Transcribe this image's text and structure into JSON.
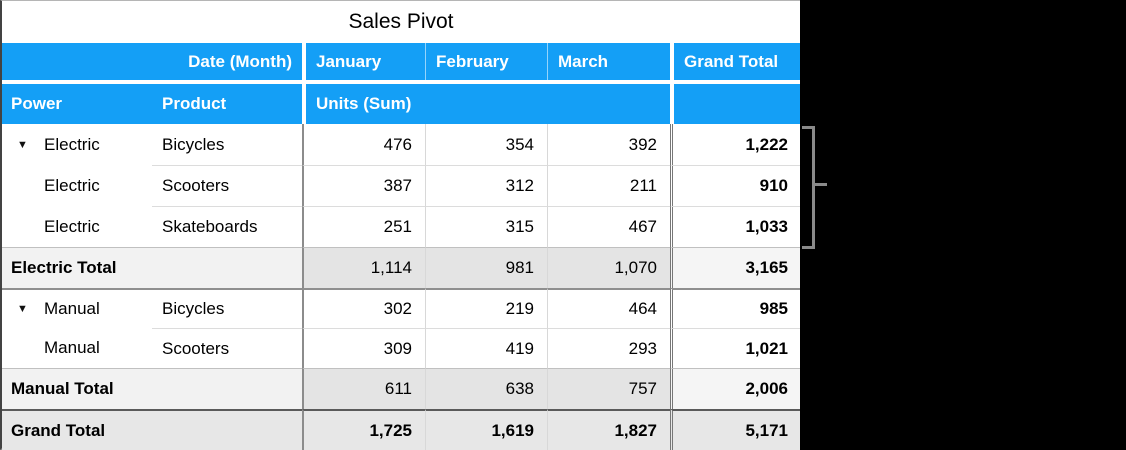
{
  "title": "Sales Pivot",
  "colors": {
    "header_blue": "#149ff6",
    "bracket_gray": "#8a8a8a",
    "subtotal_bg": "#e4e4e4",
    "grand_row_bg": "#e7e7e7"
  },
  "header": {
    "date_field_label": "Date (Month)",
    "columns": [
      "January",
      "February",
      "March"
    ],
    "grand_total_label": "Grand Total",
    "power_label": "Power",
    "product_label": "Product",
    "values_label": "Units (Sum)"
  },
  "rows": [
    {
      "power": "Electric",
      "product": "Bicycles",
      "disclosure": "▼",
      "values": [
        "476",
        "354",
        "392"
      ],
      "total": "1,222"
    },
    {
      "power": "Electric",
      "product": "Scooters",
      "values": [
        "387",
        "312",
        "211"
      ],
      "total": "910"
    },
    {
      "power": "Electric",
      "product": "Skateboards",
      "values": [
        "251",
        "315",
        "467"
      ],
      "total": "1,033"
    },
    {
      "label": "Electric Total",
      "values": [
        "1,114",
        "981",
        "1,070"
      ],
      "total": "3,165"
    },
    {
      "power": "Manual",
      "product": "Bicycles",
      "disclosure": "▼",
      "values": [
        "302",
        "219",
        "464"
      ],
      "total": "985"
    },
    {
      "power": "Manual",
      "product": "Scooters",
      "values": [
        "309",
        "419",
        "293"
      ],
      "total": "1,021"
    },
    {
      "label": "Manual Total",
      "values": [
        "611",
        "638",
        "757"
      ],
      "total": "2,006"
    },
    {
      "label": "Grand Total",
      "values": [
        "1,725",
        "1,619",
        "1,827"
      ],
      "total": "5,171"
    }
  ]
}
